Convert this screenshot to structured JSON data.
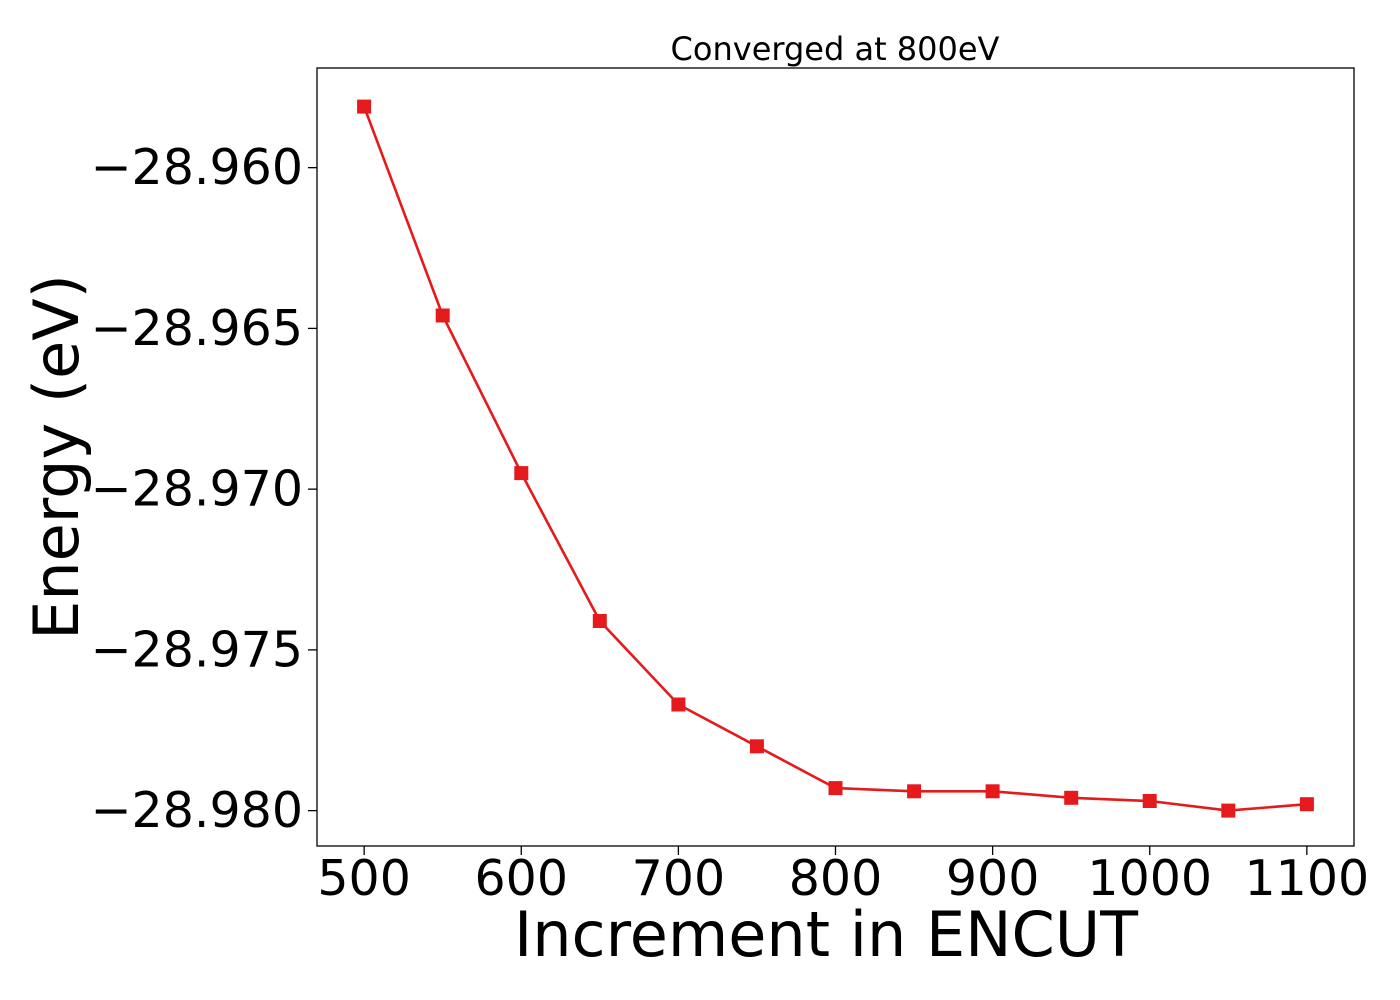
{
  "chart_data": {
    "type": "line",
    "title": "Converged at 800eV",
    "xlabel": "Increment in ENCUT",
    "ylabel": "Energy (eV)",
    "xlim": [
      470,
      1130
    ],
    "ylim": [
      -28.9811,
      -28.9569
    ],
    "x_ticks": [
      {
        "value": 500,
        "label": "500"
      },
      {
        "value": 600,
        "label": "600"
      },
      {
        "value": 700,
        "label": "700"
      },
      {
        "value": 800,
        "label": "800"
      },
      {
        "value": 900,
        "label": "900"
      },
      {
        "value": 1000,
        "label": "1000"
      },
      {
        "value": 1100,
        "label": "1100"
      }
    ],
    "y_ticks": [
      {
        "value": -28.96,
        "label": "−28.960"
      },
      {
        "value": -28.965,
        "label": "−28.965"
      },
      {
        "value": -28.97,
        "label": "−28.970"
      },
      {
        "value": -28.975,
        "label": "−28.975"
      },
      {
        "value": -28.98,
        "label": "−28.980"
      }
    ],
    "grid": false,
    "series": [
      {
        "color": "#e41a1c",
        "marker": "square",
        "x": [
          500,
          550,
          600,
          650,
          700,
          750,
          800,
          850,
          900,
          950,
          1000,
          1050,
          1100
        ],
        "y": [
          -28.9581,
          -28.9646,
          -28.9695,
          -28.9741,
          -28.9767,
          -28.978,
          -28.9793,
          -28.9794,
          -28.9794,
          -28.9796,
          -28.9797,
          -28.98,
          -28.9798
        ]
      }
    ]
  }
}
